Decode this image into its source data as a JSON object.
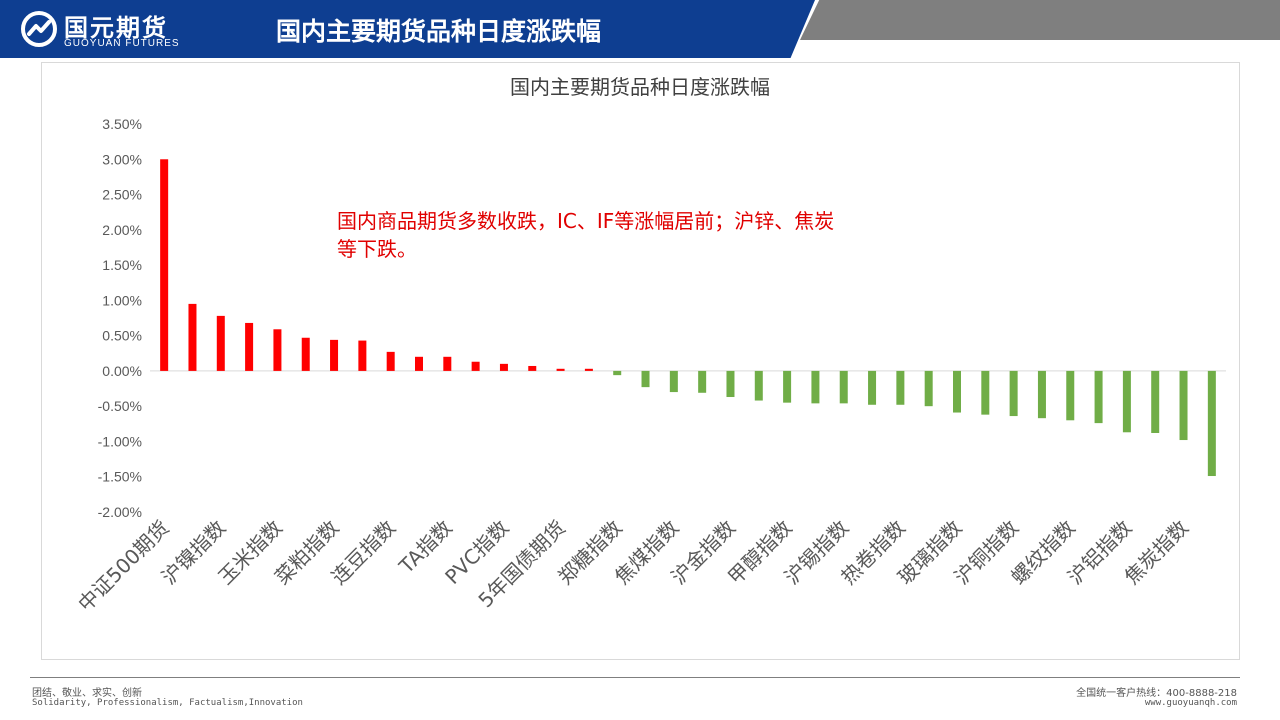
{
  "header": {
    "logo_cn": "国元期货",
    "logo_en": "GUOYUAN FUTURES",
    "slide_title": "国内主要期货品种日度涨跌幅"
  },
  "footer": {
    "left_line1": "团结、敬业、求实、创新",
    "left_line2": "Solidarity, Professionalism, Factualism,Innovation",
    "right_line1": "全国统一客户热线：400-8888-218",
    "right_line2": "www.guoyuanqh.com"
  },
  "colors": {
    "header_blue": "#0e3e91",
    "positive": "#ff0000",
    "negative": "#70ad47",
    "annotation": "#e00000"
  },
  "chart_data": {
    "type": "bar",
    "title": "国内主要期货品种日度涨跌幅",
    "annotation_line1": "国内商品期货多数收跌，IC、IF等涨幅居前；沪锌、焦炭",
    "annotation_line2": "等下跌。",
    "ylim": [
      -2.0,
      3.5
    ],
    "yticks": [
      "3.50%",
      "3.00%",
      "2.50%",
      "2.00%",
      "1.50%",
      "1.00%",
      "0.50%",
      "0.00%",
      "-0.50%",
      "-1.00%",
      "-1.50%",
      "-2.00%"
    ],
    "ytick_values": [
      3.5,
      3.0,
      2.5,
      2.0,
      1.5,
      1.0,
      0.5,
      0.0,
      -0.5,
      -1.0,
      -1.5,
      -2.0
    ],
    "grid": false,
    "legend": "none",
    "categories": [
      "中证500期货",
      "",
      "沪镍指数",
      "",
      "玉米指数",
      "",
      "菜粕指数",
      "",
      "连豆指数",
      "",
      "TA指数",
      "",
      "PVC指数",
      "",
      "5年国债期货",
      "",
      "郑糖指数",
      "",
      "焦煤指数",
      "",
      "沪金指数",
      "",
      "甲醇指数",
      "",
      "沪锡指数",
      "",
      "热卷指数",
      "",
      "玻璃指数",
      "",
      "沪铜指数",
      "",
      "螺纹指数",
      "",
      "沪铝指数",
      "",
      "焦炭指数",
      ""
    ],
    "values": [
      3.0,
      0.95,
      0.78,
      0.68,
      0.59,
      0.47,
      0.44,
      0.43,
      0.27,
      0.2,
      0.2,
      0.13,
      0.1,
      0.07,
      0.03,
      0.03,
      -0.06,
      -0.23,
      -0.3,
      -0.31,
      -0.37,
      -0.42,
      -0.45,
      -0.46,
      -0.46,
      -0.48,
      -0.48,
      -0.5,
      -0.59,
      -0.62,
      -0.64,
      -0.67,
      -0.7,
      -0.74,
      -0.87,
      -0.88,
      -0.98,
      -1.49
    ]
  }
}
